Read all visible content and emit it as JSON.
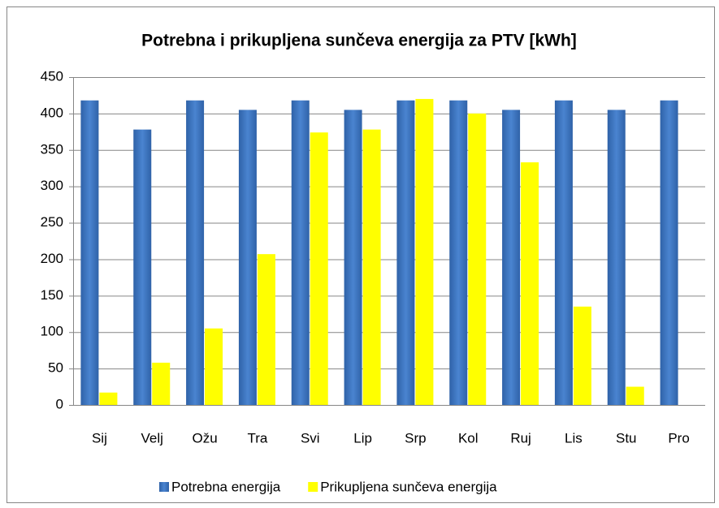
{
  "chart_data": {
    "type": "bar",
    "title": "Potrebna i prikupljena sunčeva energija za PTV [kWh]",
    "categories": [
      "Sij",
      "Velj",
      "Ožu",
      "Tra",
      "Svi",
      "Lip",
      "Srp",
      "Kol",
      "Ruj",
      "Lis",
      "Stu",
      "Pro"
    ],
    "series": [
      {
        "name": "Potrebna energija",
        "color": "#3c73c0",
        "values": [
          418,
          378,
          418,
          405,
          418,
          405,
          418,
          418,
          405,
          418,
          405,
          418
        ]
      },
      {
        "name": "Prikupljena sunčeva energija",
        "color": "#ffff00",
        "values": [
          17,
          58,
          105,
          207,
          374,
          378,
          420,
          400,
          333,
          135,
          25,
          0
        ]
      }
    ],
    "ylim": [
      0,
      450
    ],
    "yticks": [
      0,
      50,
      100,
      150,
      200,
      250,
      300,
      350,
      400,
      450
    ],
    "grid": true,
    "legend": "bottom"
  }
}
